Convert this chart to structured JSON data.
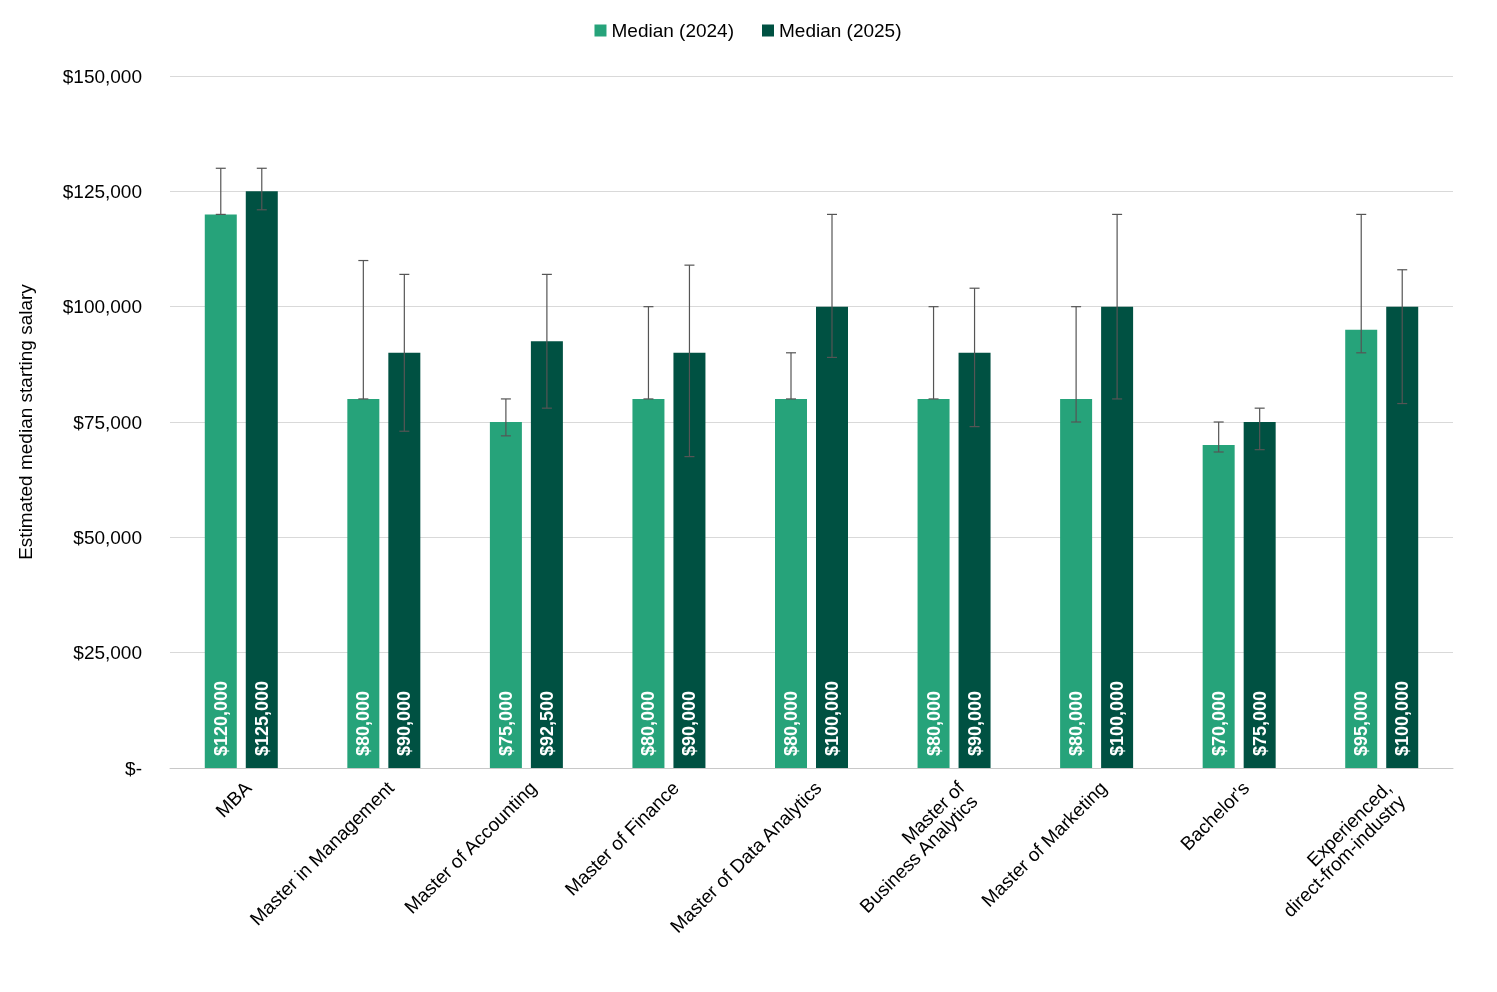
{
  "chart_data": {
    "type": "bar",
    "ylabel": "Estimated median starting salary",
    "categories": [
      "MBA",
      "Master in Management",
      "Master of Accounting",
      "Master of Finance",
      "Master of Data Analytics",
      "Master of\nBusiness Analytics",
      "Master of Marketing",
      "Bachelor's",
      "Experienced,\ndirect-from-industry"
    ],
    "series": [
      {
        "name": "Median (2024)",
        "color": "#26a37a",
        "values": [
          120000,
          80000,
          75000,
          80000,
          80000,
          80000,
          80000,
          70000,
          95000
        ],
        "errors": [
          [
            120000,
            130000
          ],
          [
            80000,
            110000
          ],
          [
            72000,
            80000
          ],
          [
            80000,
            100000
          ],
          [
            80000,
            90000
          ],
          [
            80000,
            100000
          ],
          [
            75000,
            100000
          ],
          [
            68500,
            75000
          ],
          [
            90000,
            120000
          ]
        ],
        "value_labels": [
          "$120,000",
          "$80,000",
          "$75,000",
          "$80,000",
          "$80,000",
          "$80,000",
          "$80,000",
          "$70,000",
          "$95,000"
        ]
      },
      {
        "name": "Median (2025)",
        "color": "#005142",
        "values": [
          125000,
          90000,
          92500,
          90000,
          100000,
          90000,
          100000,
          75000,
          100000
        ],
        "errors": [
          [
            121000,
            130000
          ],
          [
            73000,
            107000
          ],
          [
            78000,
            107000
          ],
          [
            67500,
            109000
          ],
          [
            89000,
            120000
          ],
          [
            74000,
            104000
          ],
          [
            80000,
            120000
          ],
          [
            69000,
            78000
          ],
          [
            79000,
            108000
          ]
        ],
        "value_labels": [
          "$125,000",
          "$90,000",
          "$92,500",
          "$90,000",
          "$100,000",
          "$90,000",
          "$100,000",
          "$75,000",
          "$100,000"
        ]
      }
    ],
    "ylim": [
      0,
      150000
    ],
    "yticks": [
      {
        "value": 0,
        "label": "$-"
      },
      {
        "value": 25000,
        "label": "$25,000"
      },
      {
        "value": 50000,
        "label": "$50,000"
      },
      {
        "value": 75000,
        "label": "$75,000"
      },
      {
        "value": 100000,
        "label": "$100,000"
      },
      {
        "value": 125000,
        "label": "$125,000"
      },
      {
        "value": 150000,
        "label": "$150,000"
      }
    ],
    "grid": "y",
    "legend": "top"
  }
}
